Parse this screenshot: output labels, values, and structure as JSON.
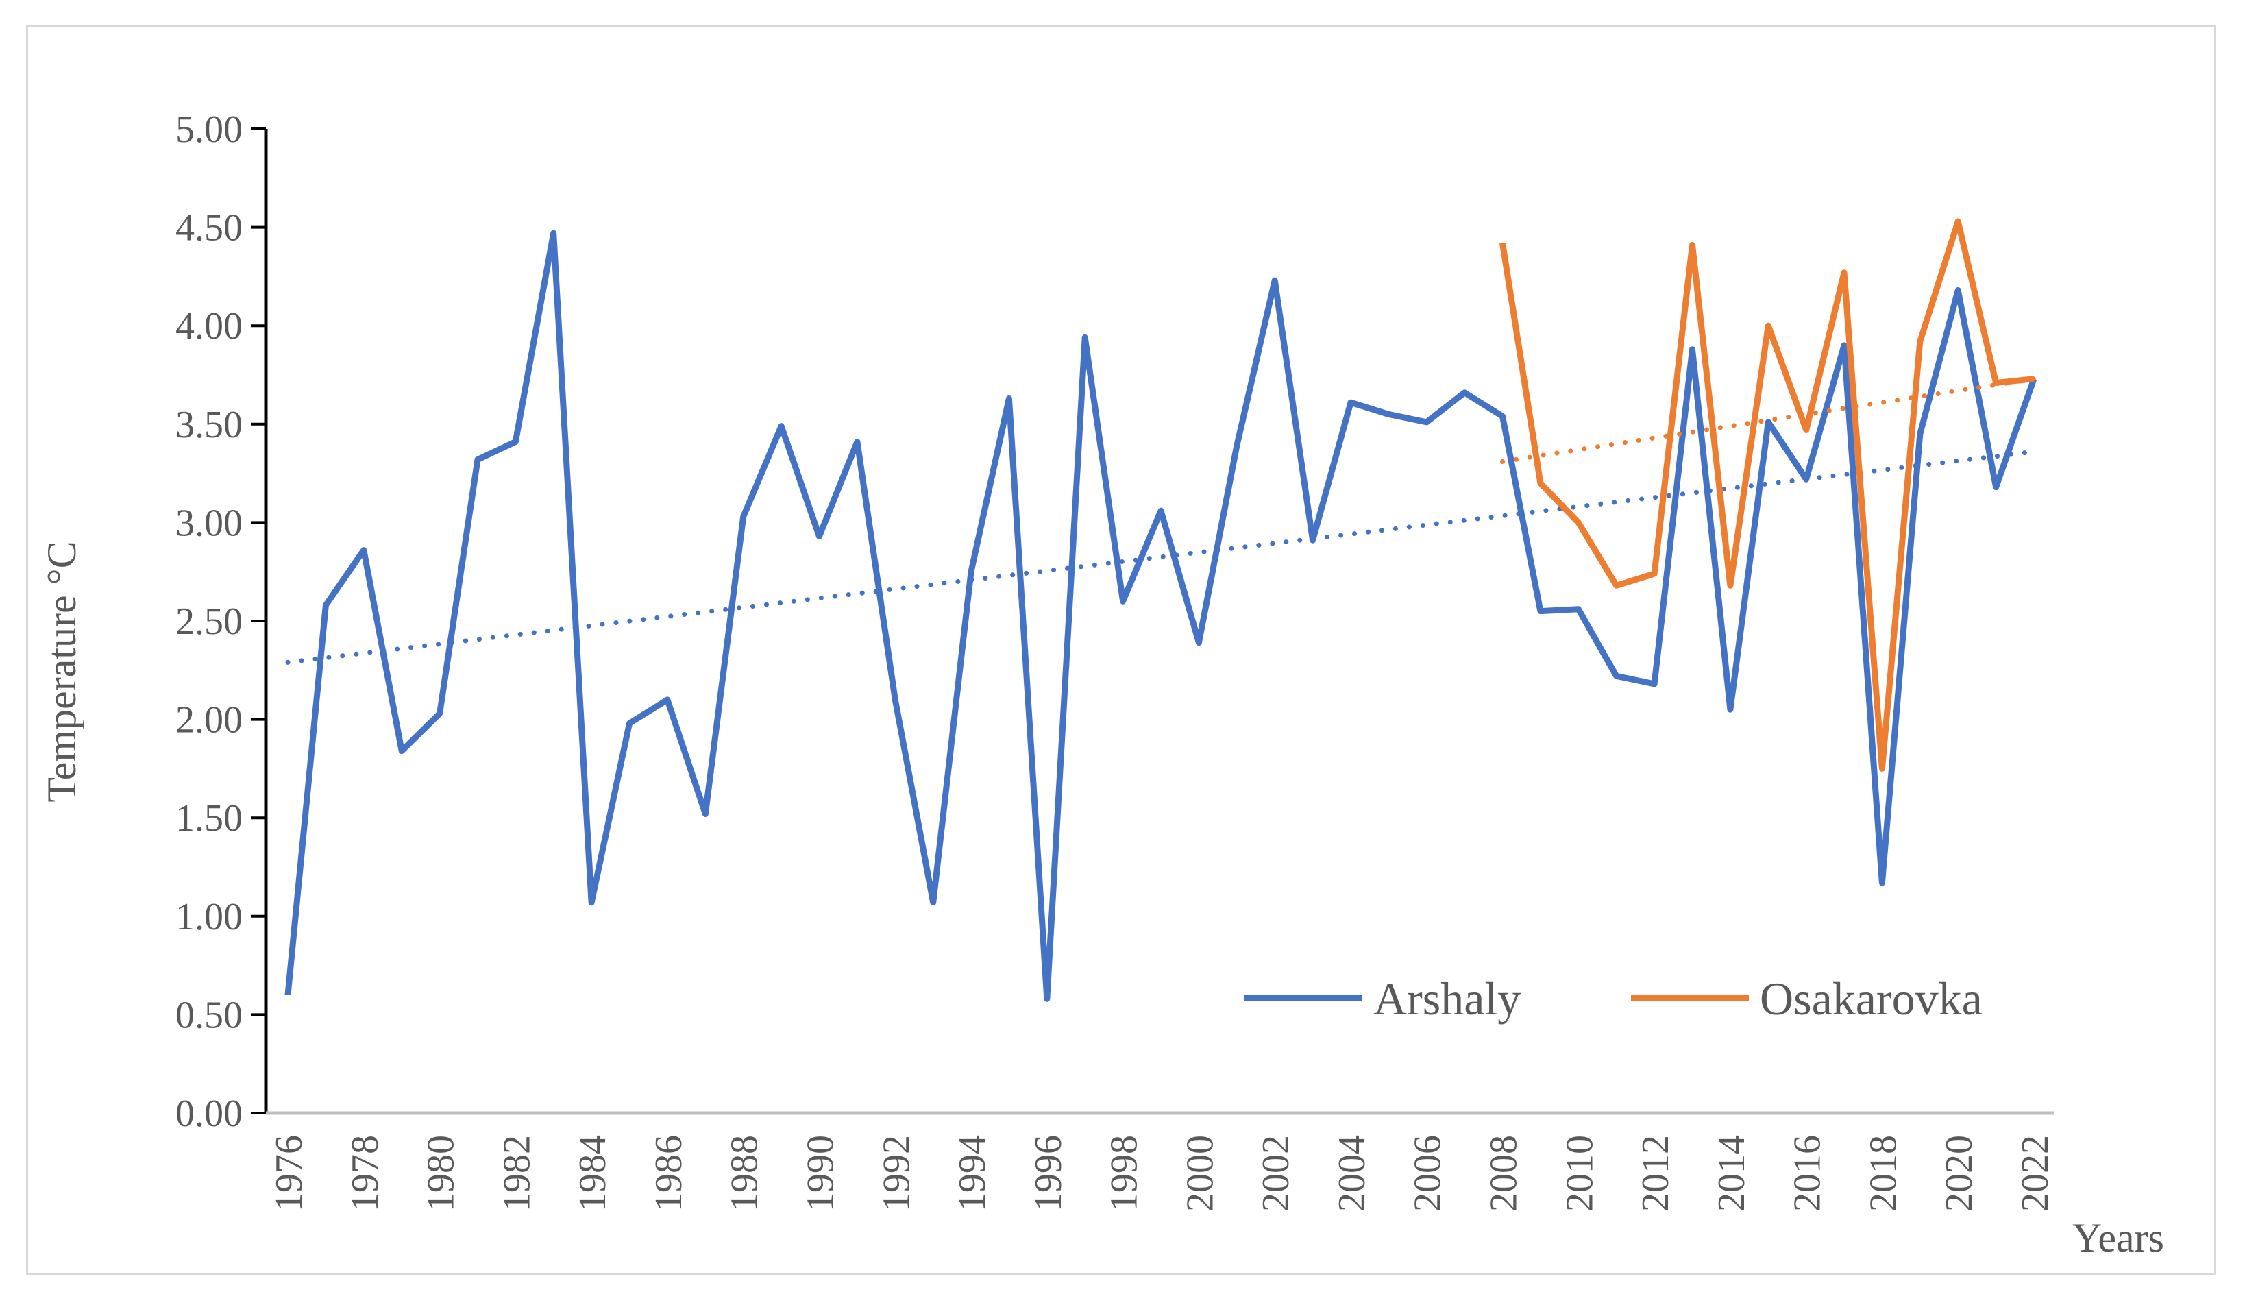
{
  "chart_data": {
    "type": "line",
    "title": "",
    "xlabel": "Years",
    "ylabel": "Temperature °C",
    "ylim": [
      0,
      5
    ],
    "y_ticks": [
      "0.00",
      "0.50",
      "1.00",
      "1.50",
      "2.00",
      "2.50",
      "3.00",
      "3.50",
      "4.00",
      "4.50",
      "5.00"
    ],
    "x_ticks": [
      "1976",
      "1978",
      "1980",
      "1982",
      "1984",
      "1986",
      "1988",
      "1990",
      "1992",
      "1994",
      "1996",
      "1998",
      "2000",
      "2002",
      "2004",
      "2006",
      "2008",
      "2010",
      "2012",
      "2014",
      "2016",
      "2018",
      "2020",
      "2022"
    ],
    "grid": false,
    "legend_position": "bottom-right",
    "series": [
      {
        "name": "Arshaly",
        "color": "#4472C4",
        "x": [
          1976,
          1977,
          1978,
          1979,
          1980,
          1981,
          1982,
          1983,
          1984,
          1985,
          1986,
          1987,
          1988,
          1989,
          1990,
          1991,
          1992,
          1993,
          1994,
          1995,
          1996,
          1997,
          1998,
          1999,
          2000,
          2001,
          2002,
          2003,
          2004,
          2005,
          2006,
          2007,
          2008,
          2009,
          2010,
          2011,
          2012,
          2013,
          2014,
          2015,
          2016,
          2017,
          2018,
          2019,
          2020,
          2021,
          2022
        ],
        "values": [
          0.6,
          2.58,
          2.86,
          1.84,
          2.03,
          3.32,
          3.41,
          4.47,
          1.07,
          1.98,
          2.1,
          1.52,
          3.03,
          3.49,
          2.93,
          3.41,
          2.1,
          1.07,
          2.75,
          3.63,
          0.58,
          3.94,
          2.6,
          3.06,
          2.39,
          3.39,
          4.23,
          2.91,
          3.61,
          3.55,
          3.51,
          3.66,
          3.54,
          2.55,
          2.56,
          2.22,
          2.18,
          3.88,
          2.05,
          3.51,
          3.22,
          3.9,
          1.17,
          3.45,
          4.18,
          3.18,
          3.73
        ],
        "trend": [
          2.29,
          3.36
        ]
      },
      {
        "name": "Osakarovka",
        "color": "#ED7D31",
        "x": [
          2008,
          2009,
          2010,
          2011,
          2012,
          2013,
          2014,
          2015,
          2016,
          2017,
          2018,
          2019,
          2020,
          2021,
          2022
        ],
        "values": [
          4.42,
          3.2,
          3.0,
          2.68,
          2.74,
          4.41,
          2.68,
          4.0,
          3.47,
          4.27,
          1.75,
          3.92,
          4.53,
          3.71,
          3.73
        ],
        "trend": [
          3.31,
          3.73
        ]
      }
    ]
  }
}
